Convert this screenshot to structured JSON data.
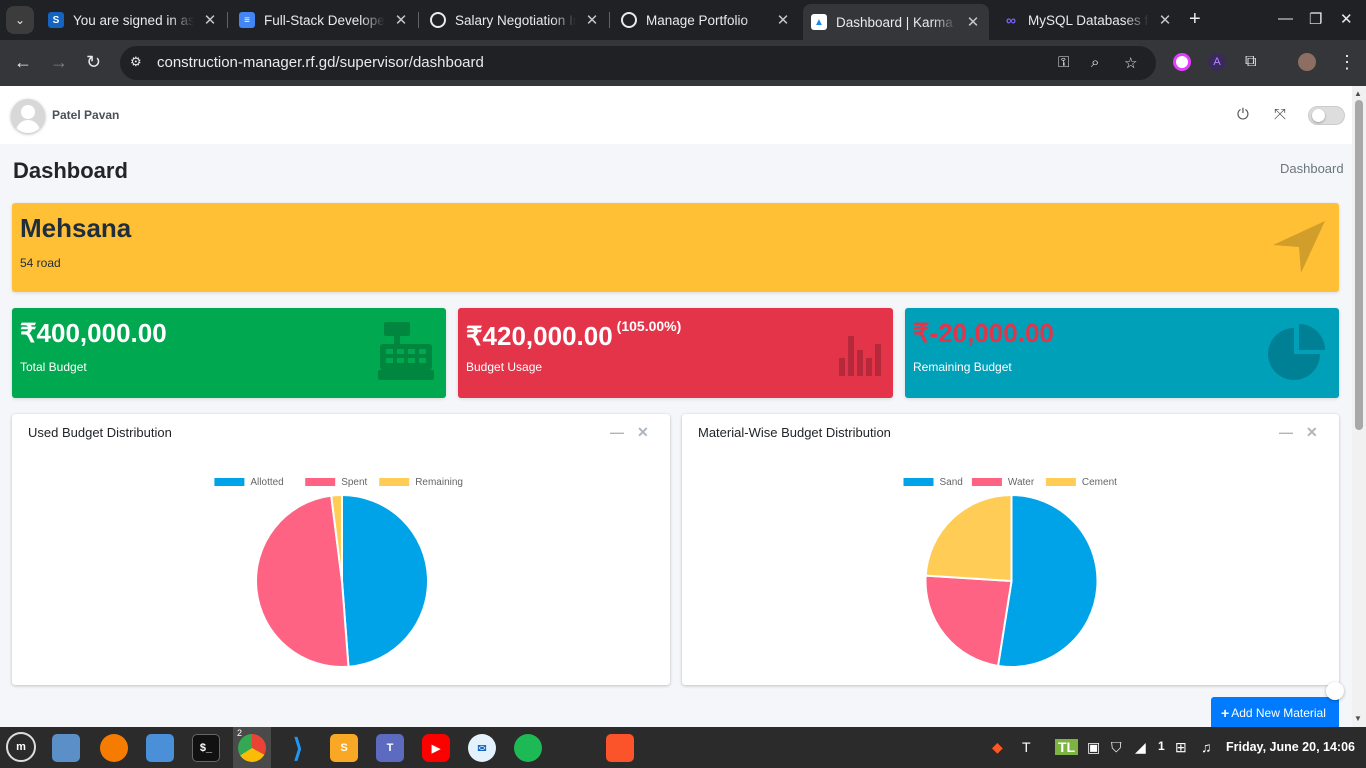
{
  "browser": {
    "tabs": [
      {
        "title": "You are signed in as",
        "favicon": "s-icon",
        "color": "#1565c0",
        "active": false
      },
      {
        "title": "Full-Stack Developer",
        "favicon": "docs-icon",
        "color": "#4285f4",
        "active": false
      },
      {
        "title": "Salary Negotiation In",
        "favicon": "openai-icon",
        "color": "#e8eaed",
        "active": false
      },
      {
        "title": "Manage Portfolio",
        "favicon": "globe-icon",
        "color": "#e8eaed",
        "active": false
      },
      {
        "title": "Dashboard | Karma I",
        "favicon": "karma-icon",
        "color": "#1e88e5",
        "active": true
      },
      {
        "title": "MySQL Databases fo",
        "favicon": "infinity-icon",
        "color": "#7b61ff",
        "active": false
      }
    ],
    "url": "construction-manager.rf.gd/supervisor/dashboard"
  },
  "user": {
    "name": "Patel Pavan"
  },
  "page": {
    "title": "Dashboard",
    "breadcrumb": "Dashboard"
  },
  "site": {
    "name": "Mehsana",
    "address": "54 road",
    "color": "#ffc035"
  },
  "stats": {
    "total": {
      "value": "₹400,000.00",
      "label": "Total Budget",
      "color": "#00a84f"
    },
    "usage": {
      "value": "₹420,000.00",
      "percent": "(105.00%)",
      "label": "Budget Usage",
      "color": "#e4344a"
    },
    "remaining": {
      "value": "₹-20,000.00",
      "label": "Remaining Budget",
      "color": "#00a0b9"
    }
  },
  "cards": {
    "used": {
      "title": "Used Budget Distribution"
    },
    "material": {
      "title": "Material-Wise Budget Distribution"
    }
  },
  "chart_data": [
    {
      "type": "pie",
      "title": "Used Budget Distribution",
      "categories": [
        "Allotted",
        "Spent",
        "Remaining"
      ],
      "values": [
        48.8,
        49.2,
        2.0
      ],
      "colors": [
        "#00a2e8",
        "#ff6384",
        "#ffcd56"
      ],
      "legend": "top"
    },
    {
      "type": "pie",
      "title": "Material-Wise Budget Distribution",
      "categories": [
        "Sand",
        "Water",
        "Cement"
      ],
      "values": [
        52.5,
        23.5,
        24.0
      ],
      "colors": [
        "#00a2e8",
        "#ff6384",
        "#ffcd56"
      ],
      "legend": "top"
    }
  ],
  "actions": {
    "add_material": "Add New Material"
  },
  "taskbar": {
    "chrome_badge": "2",
    "tray_count": "1",
    "clock": "Friday, June 20, 14:06"
  }
}
